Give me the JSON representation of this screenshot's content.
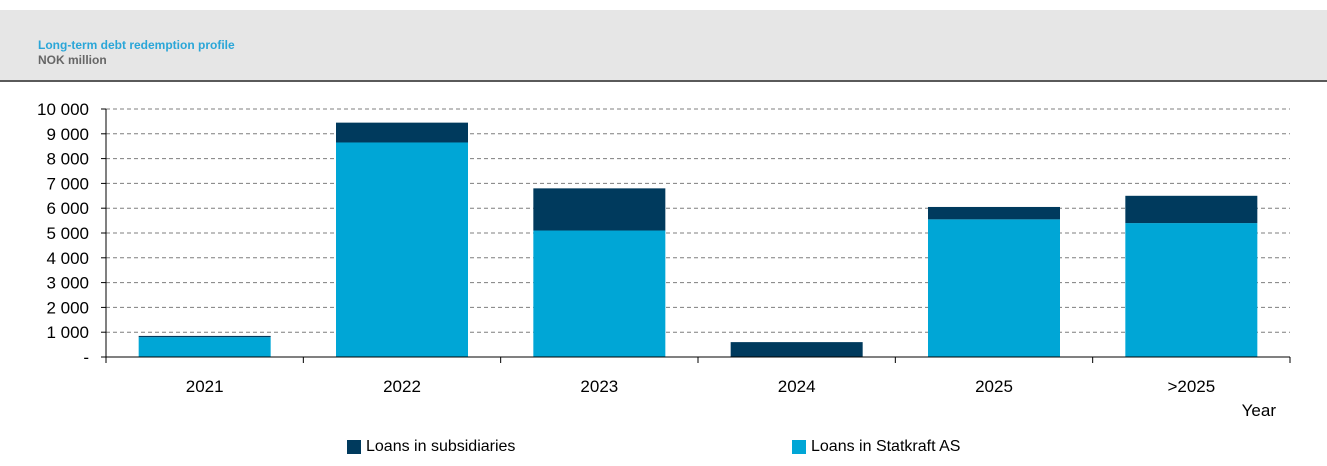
{
  "chart_data": {
    "type": "bar",
    "stacked": true,
    "title": "Long-term debt redemption profile",
    "subtitle": "NOK million",
    "xlabel": "Year",
    "ylabel": "",
    "categories": [
      "2021",
      "2022",
      "2023",
      "2024",
      "2025",
      ">2025"
    ],
    "ylim": [
      0,
      10000
    ],
    "yticks": [
      0,
      1000,
      2000,
      3000,
      4000,
      5000,
      6000,
      7000,
      8000,
      9000,
      10000
    ],
    "ytick_labels": [
      "-",
      "1 000",
      "2 000",
      "3 000",
      "4 000",
      "5 000",
      "6 000",
      "7 000",
      "8 000",
      "9 000",
      "10 000"
    ],
    "grid": "horizontal-dashed",
    "legend": "bottom",
    "series": [
      {
        "name": "Loans in Statkraft AS",
        "color": "#00a6d6",
        "values": [
          800,
          8650,
          5100,
          0,
          5550,
          5400
        ]
      },
      {
        "name": "Loans in subsidiaries",
        "color": "#003a5d",
        "values": [
          50,
          800,
          1700,
          600,
          500,
          1100
        ]
      }
    ]
  }
}
